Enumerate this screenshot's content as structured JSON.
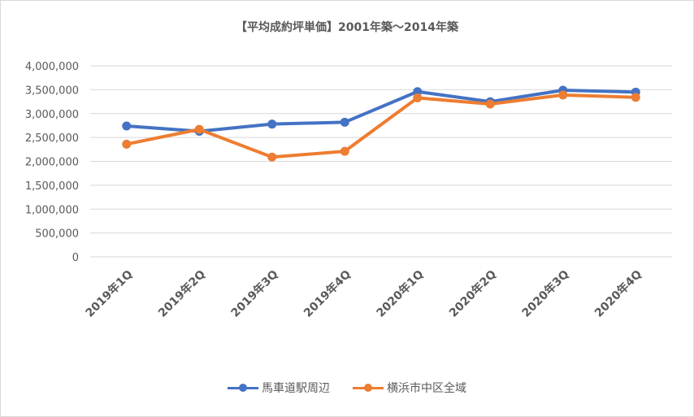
{
  "chart_data": {
    "type": "line",
    "title": "【平均成約坪単価】2001年築～2014年築",
    "categories": [
      "2019年1Q",
      "2019年2Q",
      "2019年3Q",
      "2019年4Q",
      "2020年1Q",
      "2020年2Q",
      "2020年3Q",
      "2020年4Q"
    ],
    "series": [
      {
        "name": "馬車道駅周辺",
        "color": "#4472c4",
        "values": [
          2740000,
          2630000,
          2780000,
          2820000,
          3460000,
          3250000,
          3490000,
          3450000
        ]
      },
      {
        "name": "横浜市中区全域",
        "color": "#ed7d31",
        "values": [
          2360000,
          2670000,
          2090000,
          2210000,
          3330000,
          3200000,
          3390000,
          3340000
        ]
      }
    ],
    "ylim": [
      0,
      4000000
    ],
    "yticks": [
      "0",
      "500,000",
      "1,000,000",
      "1,500,000",
      "2,000,000",
      "2,500,000",
      "3,000,000",
      "3,500,000",
      "4,000,000"
    ],
    "grid": true,
    "legend_position": "bottom"
  }
}
